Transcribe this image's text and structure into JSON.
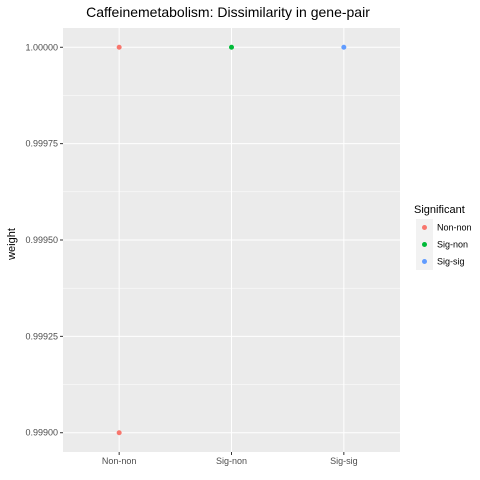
{
  "chart_data": {
    "type": "scatter",
    "title": "Caffeinemetabolism: Dissimilarity in gene-pair",
    "xlabel": "",
    "ylabel": "weight",
    "categories": [
      "Non-non",
      "Sig-non",
      "Sig-sig"
    ],
    "y_ticks": [
      "0.99900",
      "0.99925",
      "0.99950",
      "0.99975",
      "1.00000"
    ],
    "y_tick_values": [
      0.999,
      0.99925,
      0.9995,
      0.99975,
      1.0
    ],
    "ylim": [
      0.99895,
      1.00005
    ],
    "grid": true,
    "legend": {
      "title": "Significant",
      "placement": "right",
      "entries": [
        "Non-non",
        "Sig-non",
        "Sig-sig"
      ]
    },
    "colors": {
      "Non-non": "#F8766D",
      "Sig-non": "#00BA38",
      "Sig-sig": "#619CFF",
      "panel": "#EBEBEB",
      "grid": "#FFFFFF"
    },
    "points": [
      {
        "category": "Non-non",
        "group": "Non-non",
        "y": 1.0
      },
      {
        "category": "Non-non",
        "group": "Non-non",
        "y": 0.999
      },
      {
        "category": "Sig-non",
        "group": "Sig-non",
        "y": 1.0
      },
      {
        "category": "Sig-sig",
        "group": "Sig-sig",
        "y": 1.0
      }
    ]
  }
}
